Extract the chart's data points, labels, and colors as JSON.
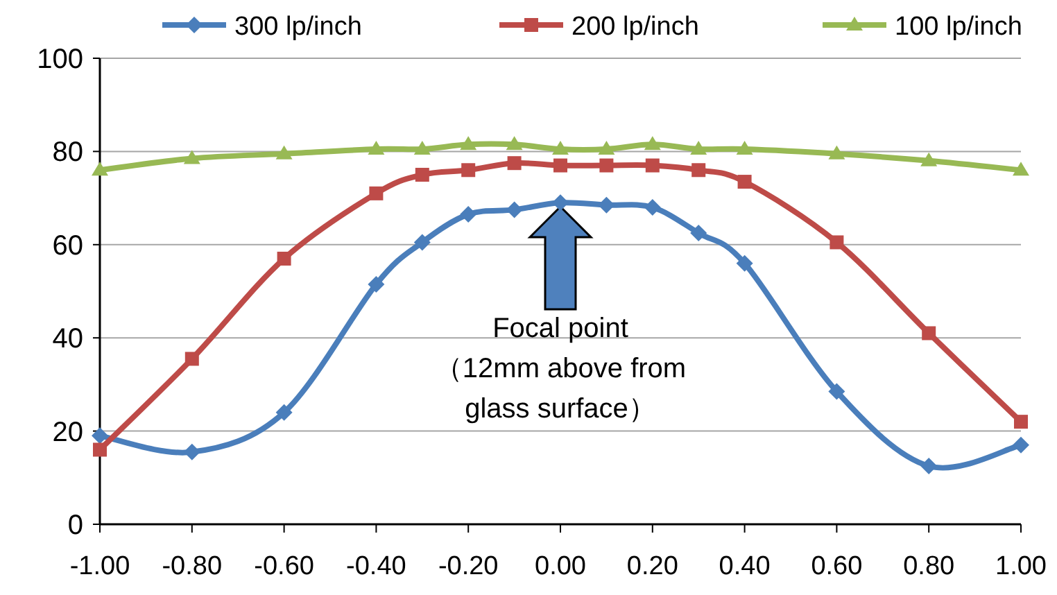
{
  "chart_data": {
    "type": "line",
    "x": [
      -1,
      -0.8,
      -0.6,
      -0.4,
      -0.3,
      -0.2,
      -0.1,
      0,
      0.1,
      0.2,
      0.3,
      0.4,
      0.6,
      0.8,
      1
    ],
    "series": [
      {
        "name": "300 lp/inch",
        "color": "#4a7ebb",
        "marker": "diamond",
        "values": [
          19,
          15.5,
          24,
          51.5,
          60.5,
          66.5,
          67.5,
          69,
          68.5,
          68,
          62.5,
          56,
          28.5,
          12.5,
          17
        ]
      },
      {
        "name": "200 lp/inch",
        "color": "#be4b48",
        "marker": "square",
        "values": [
          16,
          35.5,
          57,
          71,
          75,
          76,
          77.5,
          77,
          77,
          77,
          76,
          73.5,
          60.5,
          41,
          22
        ]
      },
      {
        "name": "100 lp/inch",
        "color": "#98b954",
        "marker": "triangle",
        "values": [
          76,
          78.5,
          79.5,
          80.5,
          80.5,
          81.5,
          81.5,
          80.5,
          80.5,
          81.5,
          80.5,
          80.5,
          79.5,
          78,
          76
        ]
      }
    ],
    "xlim": [
      -1,
      1
    ],
    "xticks": [
      {
        "value": -1,
        "label": "-1.00"
      },
      {
        "value": -0.8,
        "label": "-0.80"
      },
      {
        "value": -0.6,
        "label": "-0.60"
      },
      {
        "value": -0.4,
        "label": "-0.40"
      },
      {
        "value": -0.2,
        "label": "-0.20"
      },
      {
        "value": 0,
        "label": "0.00"
      },
      {
        "value": 0.2,
        "label": "0.20"
      },
      {
        "value": 0.4,
        "label": "0.40"
      },
      {
        "value": 0.6,
        "label": "0.60"
      },
      {
        "value": 0.8,
        "label": "0.80"
      },
      {
        "value": 1,
        "label": "1.00"
      }
    ],
    "ylim": [
      0,
      100
    ],
    "yticks": [
      0,
      20,
      40,
      60,
      80,
      100
    ],
    "grid": "y",
    "legend": "top",
    "annotations": [
      "Focal point （12mm above from glass surface）"
    ]
  }
}
